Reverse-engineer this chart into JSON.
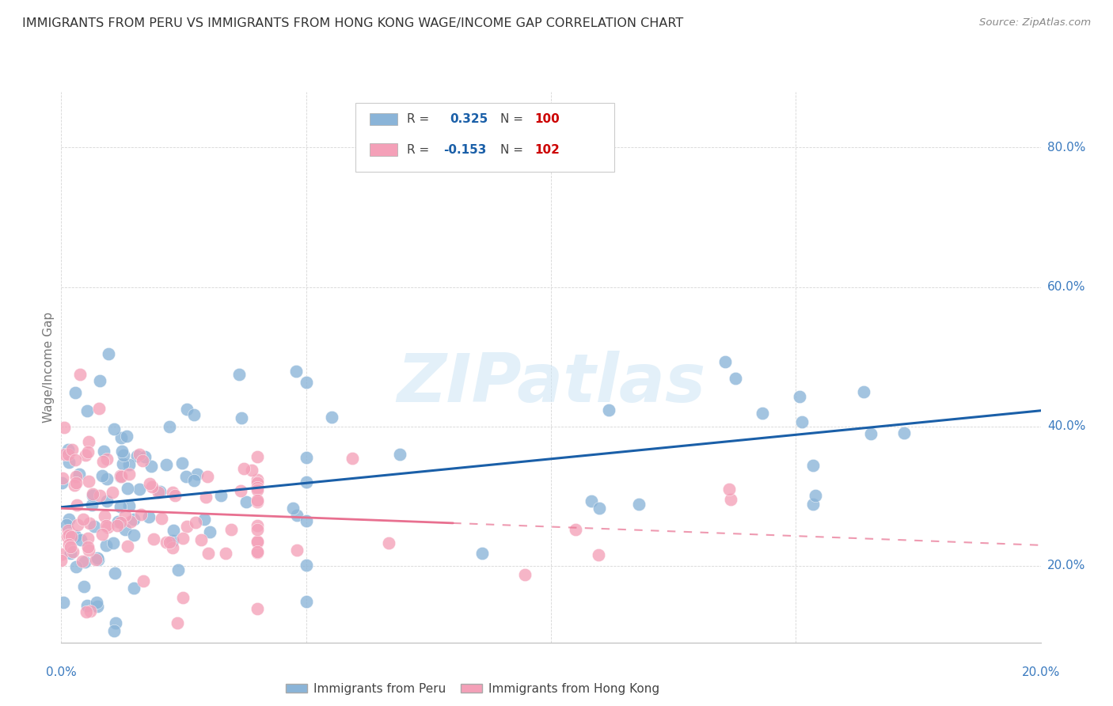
{
  "title": "IMMIGRANTS FROM PERU VS IMMIGRANTS FROM HONG KONG WAGE/INCOME GAP CORRELATION CHART",
  "source": "Source: ZipAtlas.com",
  "ylabel": "Wage/Income Gap",
  "right_yticks": [
    "20.0%",
    "40.0%",
    "60.0%",
    "80.0%"
  ],
  "right_ytick_vals": [
    0.2,
    0.4,
    0.6,
    0.8
  ],
  "legend_label_peru": "Immigrants from Peru",
  "legend_label_hk": "Immigrants from Hong Kong",
  "watermark": "ZIPatlas",
  "blue_scatter_color": "#8ab4d8",
  "pink_scatter_color": "#f4a0b8",
  "blue_line_color": "#1a5fa8",
  "pink_line_color": "#e87090",
  "axis_label_color": "#3a7abf",
  "title_color": "#333333",
  "source_color": "#888888",
  "grid_color": "#cccccc",
  "xmin": 0.0,
  "xmax": 0.2,
  "ymin": 0.09,
  "ymax": 0.88
}
